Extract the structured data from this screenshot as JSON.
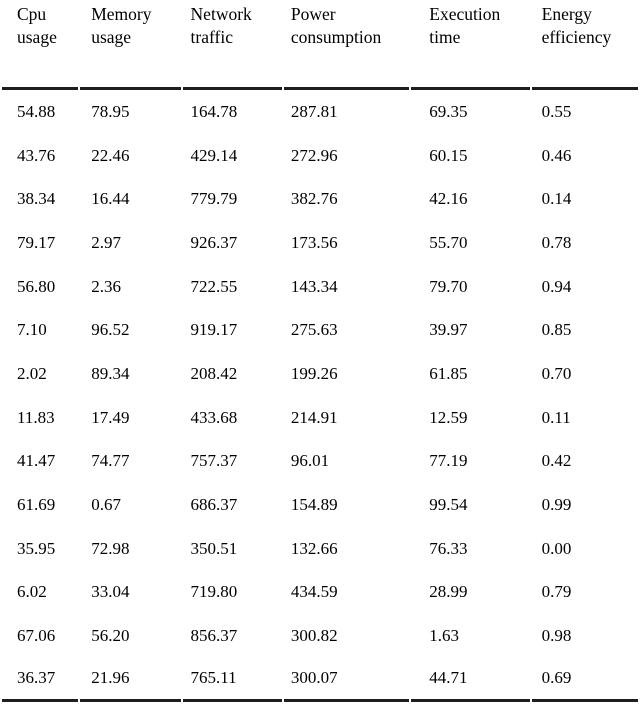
{
  "chart_data": {
    "type": "table",
    "columns": [
      "Cpu usage",
      "Memory usage",
      "Network traffic",
      "Power consumption",
      "Execution time",
      "Energy efficiency"
    ],
    "rows": [
      [
        "54.88",
        "78.95",
        "164.78",
        "287.81",
        "69.35",
        "0.55"
      ],
      [
        "43.76",
        "22.46",
        "429.14",
        "272.96",
        "60.15",
        "0.46"
      ],
      [
        "38.34",
        "16.44",
        "779.79",
        "382.76",
        "42.16",
        "0.14"
      ],
      [
        "79.17",
        "2.97",
        "926.37",
        "173.56",
        "55.70",
        "0.78"
      ],
      [
        "56.80",
        "2.36",
        "722.55",
        "143.34",
        "79.70",
        "0.94"
      ],
      [
        "7.10",
        "96.52",
        "919.17",
        "275.63",
        "39.97",
        "0.85"
      ],
      [
        "2.02",
        "89.34",
        "208.42",
        "199.26",
        "61.85",
        "0.70"
      ],
      [
        "11.83",
        "17.49",
        "433.68",
        "214.91",
        "12.59",
        "0.11"
      ],
      [
        "41.47",
        "74.77",
        "757.37",
        "96.01",
        "77.19",
        "0.42"
      ],
      [
        "61.69",
        "0.67",
        "686.37",
        "154.89",
        "99.54",
        "0.99"
      ],
      [
        "35.95",
        "72.98",
        "350.51",
        "132.66",
        "76.33",
        "0.00"
      ],
      [
        "6.02",
        "33.04",
        "719.80",
        "434.59",
        "28.99",
        "0.79"
      ],
      [
        "67.06",
        "56.20",
        "856.37",
        "300.82",
        "1.63",
        "0.98"
      ],
      [
        "36.37",
        "21.96",
        "765.11",
        "300.07",
        "44.71",
        "0.69"
      ]
    ],
    "title": "",
    "layout": {
      "grid": "horizontal-rules-only",
      "alignment": "left"
    }
  },
  "colors": {
    "rule": "#1e1e1e",
    "text": "#000000",
    "background": "#ffffff"
  }
}
